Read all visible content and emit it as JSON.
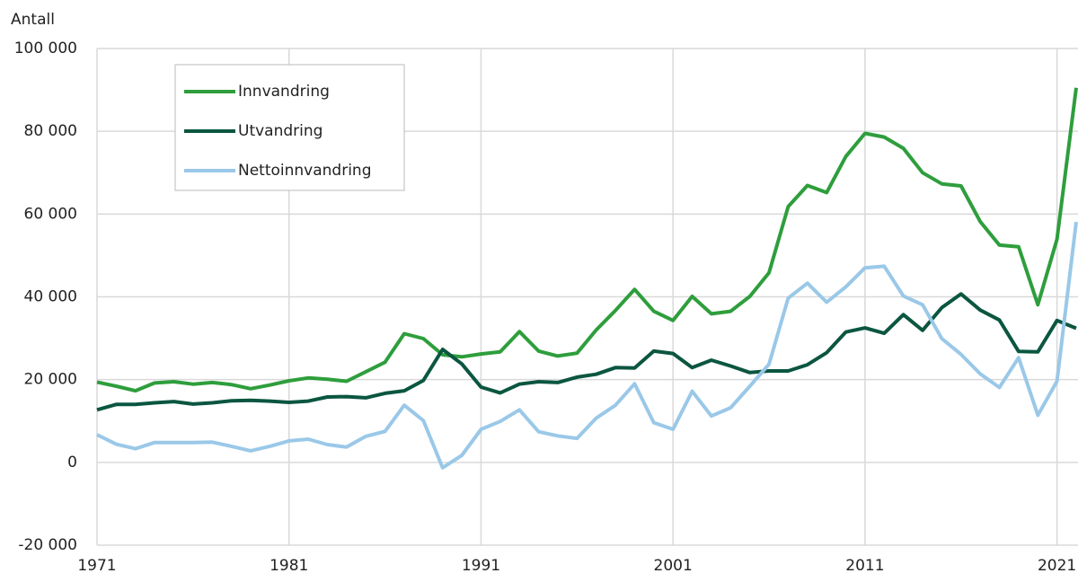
{
  "chart_data": {
    "type": "line",
    "y_label": "Antall",
    "x": [
      1971,
      1972,
      1973,
      1974,
      1975,
      1976,
      1977,
      1978,
      1979,
      1980,
      1981,
      1982,
      1983,
      1984,
      1985,
      1986,
      1987,
      1988,
      1989,
      1990,
      1991,
      1992,
      1993,
      1994,
      1995,
      1996,
      1997,
      1998,
      1999,
      2000,
      2001,
      2002,
      2003,
      2004,
      2005,
      2006,
      2007,
      2008,
      2009,
      2010,
      2011,
      2012,
      2013,
      2014,
      2015,
      2016,
      2017,
      2018,
      2019,
      2020,
      2021,
      2022
    ],
    "series": [
      {
        "name": "Innvandring",
        "color": "#2e9e3c",
        "values": [
          19400,
          18400,
          17300,
          19200,
          19500,
          18900,
          19300,
          18800,
          17800,
          18700,
          19700,
          20400,
          20100,
          19600,
          21900,
          24200,
          31100,
          29900,
          26000,
          25500,
          26200,
          26700,
          31600,
          26900,
          25700,
          26400,
          32000,
          36700,
          41800,
          36500,
          34300,
          40100,
          35900,
          36500,
          40100,
          45800,
          61800,
          66900,
          65200,
          73900,
          79500,
          78600,
          75900,
          70000,
          67300,
          66800,
          58200,
          52500,
          52100,
          38100,
          53900,
          90500
        ]
      },
      {
        "name": "Utvandring",
        "color": "#0b5640",
        "values": [
          12700,
          14000,
          14000,
          14400,
          14700,
          14100,
          14400,
          14900,
          15000,
          14800,
          14500,
          14800,
          15800,
          15900,
          15600,
          16700,
          17300,
          19800,
          27300,
          23800,
          18200,
          16800,
          18900,
          19500,
          19300,
          20600,
          21300,
          22900,
          22800,
          26900,
          26300,
          22900,
          24700,
          23300,
          21700,
          22100,
          22100,
          23600,
          26500,
          31500,
          32500,
          31200,
          35700,
          31900,
          37400,
          40700,
          36800,
          34400,
          26800,
          26700,
          34300,
          32400
        ]
      },
      {
        "name": "Nettoinnvandring",
        "color": "#9ac8e8",
        "values": [
          6700,
          4400,
          3300,
          4800,
          4800,
          4800,
          4900,
          3900,
          2800,
          3900,
          5200,
          5600,
          4300,
          3700,
          6300,
          7500,
          13800,
          10100,
          -1300,
          1700,
          8000,
          9900,
          12700,
          7400,
          6400,
          5800,
          10700,
          13800,
          19000,
          9600,
          8000,
          17200,
          11200,
          13200,
          18400,
          23700,
          39700,
          43300,
          38700,
          42400,
          47000,
          47400,
          40200,
          38100,
          29900,
          26100,
          21400,
          18100,
          25300,
          11400,
          19600,
          58100
        ]
      }
    ],
    "xlim": [
      1971,
      2022
    ],
    "xticks": [
      1971,
      1981,
      1991,
      2001,
      2011,
      2021
    ],
    "ylim": [
      -20000,
      100000
    ],
    "yticks": [
      {
        "value": -20000,
        "label": "-20 000"
      },
      0,
      {
        "value": 20000,
        "label": "20 000"
      },
      {
        "value": 40000,
        "label": "40 000"
      },
      {
        "value": 60000,
        "label": "60 000"
      },
      {
        "value": 80000,
        "label": "80 000"
      },
      {
        "value": 100000,
        "label": "100 000"
      }
    ],
    "grid": true,
    "legend": "upper left"
  }
}
